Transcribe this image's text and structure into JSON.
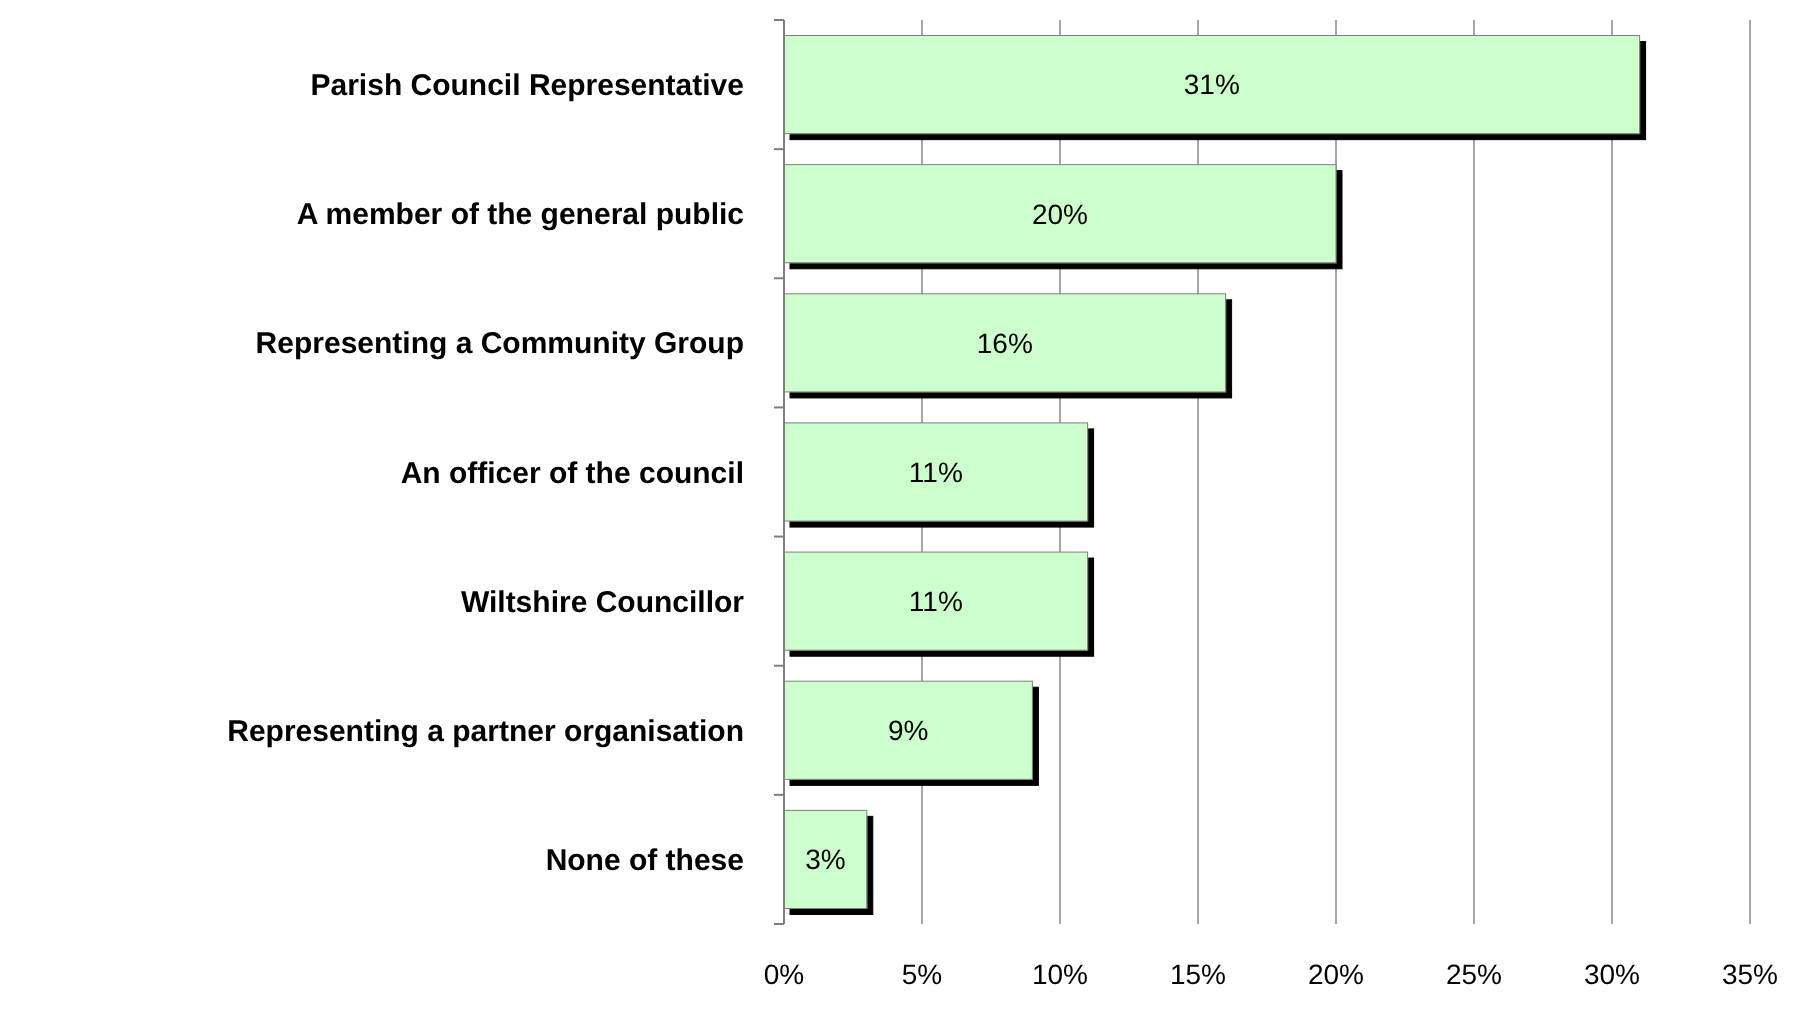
{
  "chart_data": {
    "type": "bar",
    "orientation": "horizontal",
    "categories": [
      "Parish Council Representative",
      "A member of the general public",
      "Representing a Community Group",
      "An officer of the council",
      "Wiltshire Councillor",
      "Representing a partner organisation",
      "None of these"
    ],
    "values": [
      31,
      20,
      16,
      11,
      11,
      9,
      3
    ],
    "value_labels": [
      "31%",
      "20%",
      "16%",
      "11%",
      "11%",
      "9%",
      "3%"
    ],
    "color": "#ccffcc",
    "xlim": [
      0,
      35
    ],
    "xticks": [
      {
        "value": 0,
        "label": "0%"
      },
      {
        "value": 5,
        "label": "5%"
      },
      {
        "value": 10,
        "label": "10%"
      },
      {
        "value": 15,
        "label": "15%"
      },
      {
        "value": 20,
        "label": "20%"
      },
      {
        "value": 25,
        "label": "25%"
      },
      {
        "value": 30,
        "label": "30%"
      },
      {
        "value": 35,
        "label": "35%"
      }
    ],
    "grid": "x"
  }
}
